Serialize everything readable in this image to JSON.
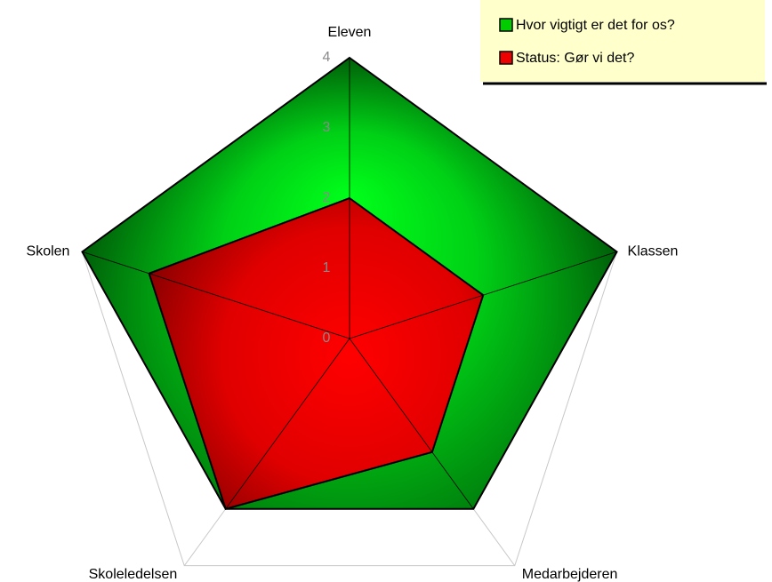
{
  "chart_data": {
    "type": "radar",
    "categories": [
      "Eleven",
      "Klassen",
      "Medarbejderen",
      "Skoleledelsen",
      "Skolen"
    ],
    "series": [
      {
        "name": "Hvor vigtigt er det for os?",
        "color": "#00cc00",
        "values": [
          4,
          4,
          3,
          3,
          4
        ]
      },
      {
        "name": "Status: Gør vi det?",
        "color": "#ee0000",
        "values": [
          2,
          2,
          2,
          3,
          3
        ]
      }
    ],
    "ylim": [
      0,
      4
    ],
    "yticks": [
      0,
      1,
      2,
      3,
      4
    ],
    "legend": "top-right"
  }
}
